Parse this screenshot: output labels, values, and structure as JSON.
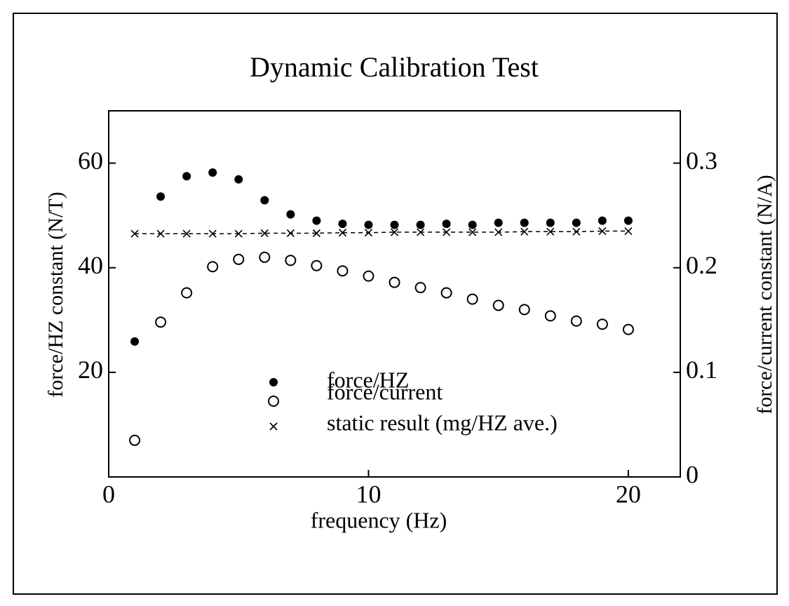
{
  "chart_data": {
    "type": "scatter",
    "title": "Dynamic Calibration Test",
    "x_label": "frequency  (Hz)",
    "y_label": "force/HZ constant  (N/T)",
    "y2_label": "force/current constant  (N/A)",
    "x": [
      1,
      2,
      3,
      4,
      5,
      6,
      7,
      8,
      9,
      10,
      11,
      12,
      13,
      14,
      15,
      16,
      17,
      18,
      19,
      20
    ],
    "xlim": [
      0,
      22
    ],
    "xticks": [
      0,
      10,
      20
    ],
    "ylim": [
      0,
      70
    ],
    "yticks": [
      20,
      40,
      60
    ],
    "y2lim": [
      0,
      0.35
    ],
    "y2ticks": [
      0,
      0.1,
      0.2,
      0.3
    ],
    "series": [
      {
        "name": "force/HZ",
        "color": "#000000",
        "marker": "filled",
        "values": [
          25.9,
          53.6,
          57.5,
          58.2,
          56.9,
          52.9,
          50.2,
          49.0,
          48.4,
          48.2,
          48.2,
          48.2,
          48.4,
          48.2,
          48.6,
          48.6,
          48.6,
          48.6,
          49.0,
          49.0
        ]
      },
      {
        "name": "force/current",
        "color": "#000000",
        "marker": "open",
        "axis": "y2",
        "values": [
          0.035,
          0.148,
          0.176,
          0.201,
          0.208,
          0.21,
          0.207,
          0.202,
          0.197,
          0.192,
          0.186,
          0.181,
          0.176,
          0.17,
          0.164,
          0.16,
          0.154,
          0.149,
          0.146,
          0.141
        ]
      },
      {
        "name": "static result  (mg/HZ ave.)",
        "color": "#000000",
        "marker": "x",
        "line": "dashed",
        "values": [
          46.5,
          46.5,
          46.5,
          46.5,
          46.5,
          46.6,
          46.6,
          46.6,
          46.7,
          46.7,
          46.8,
          46.8,
          46.8,
          46.8,
          46.8,
          46.9,
          46.9,
          46.9,
          47.0,
          47.0
        ]
      }
    ]
  }
}
